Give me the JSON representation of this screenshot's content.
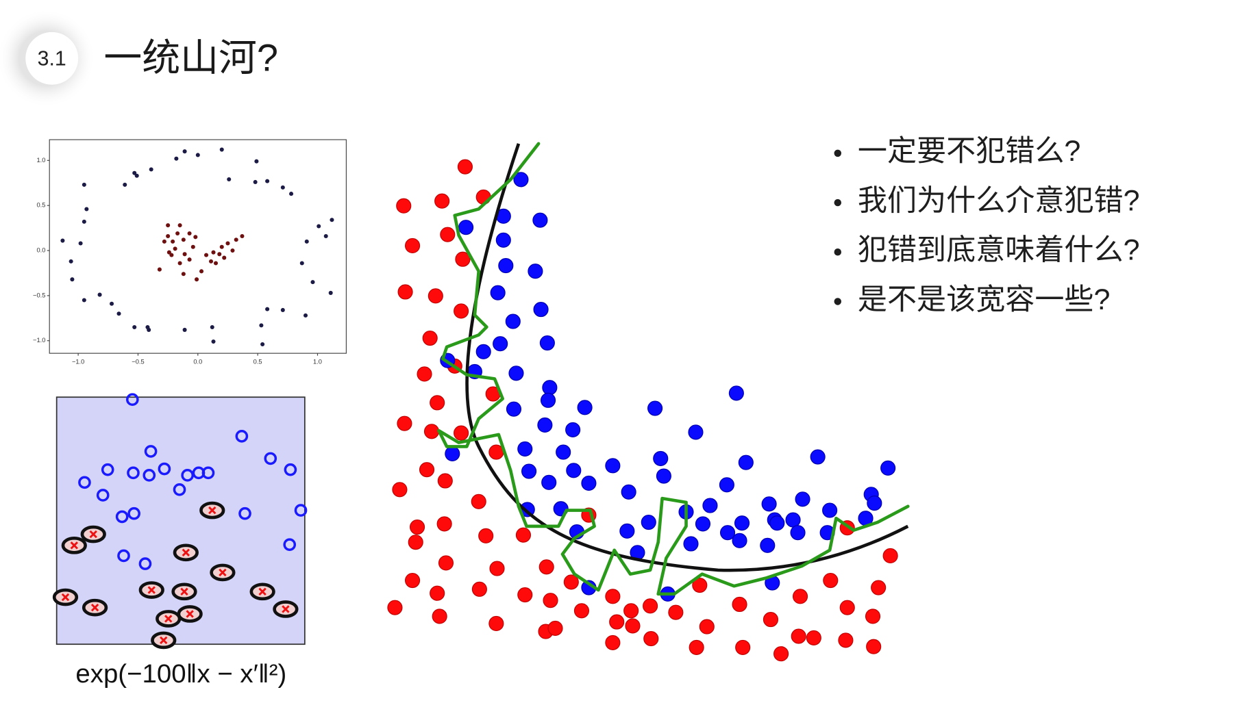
{
  "header": {
    "section": "3.1",
    "title": "一统山河?"
  },
  "bullets": [
    "一定要不犯错么?",
    "我们为什么介意犯错?",
    "犯错到底意味着什么?",
    "是不是该宽容一些?"
  ],
  "chart_data": {
    "type": "scatter",
    "xlim": [
      -1.24,
      1.24
    ],
    "ylim": [
      -1.14,
      1.23
    ],
    "xticks": [
      {
        "value": -1.0,
        "label": "−1.0"
      },
      {
        "value": -0.5,
        "label": "−0.5"
      },
      {
        "value": 0.0,
        "label": "0.0"
      },
      {
        "value": 0.5,
        "label": "0.5"
      },
      {
        "value": 1.0,
        "label": "1.0"
      }
    ],
    "yticks": [
      {
        "value": 1.0,
        "label": "1.0"
      },
      {
        "value": 0.5,
        "label": "0.5"
      },
      {
        "value": 0.0,
        "label": "0.0"
      },
      {
        "value": -0.5,
        "label": "−0.5"
      },
      {
        "value": -1.0,
        "label": "−1.0"
      }
    ],
    "series": [
      {
        "color": "#1b1b46",
        "x": [
          -0.11,
          0.0,
          0.2,
          -0.18,
          -0.39,
          -0.53,
          -0.51,
          -0.61,
          -0.95,
          0.49,
          0.58,
          0.48,
          0.71,
          0.78,
          0.26,
          -0.93,
          -0.95,
          -1.13,
          -0.98,
          1.12,
          1.01,
          1.07,
          0.91,
          -1.06,
          0.87,
          -1.05,
          0.96,
          -0.95,
          -0.82,
          -0.72,
          -0.66,
          1.11,
          0.9,
          0.58,
          0.71,
          -0.53,
          -0.42,
          -0.41,
          -0.11,
          0.12,
          0.13,
          0.53,
          0.54
        ],
        "y": [
          1.1,
          1.06,
          1.12,
          1.02,
          0.9,
          0.86,
          0.83,
          0.73,
          0.73,
          0.99,
          0.77,
          0.76,
          0.7,
          0.63,
          0.79,
          0.46,
          0.32,
          0.11,
          0.08,
          0.34,
          0.27,
          0.16,
          0.1,
          -0.12,
          -0.14,
          -0.32,
          -0.35,
          -0.55,
          -0.49,
          -0.59,
          -0.7,
          -0.47,
          -0.72,
          -0.65,
          -0.66,
          -0.85,
          -0.85,
          -0.88,
          -0.88,
          -0.85,
          -1.01,
          -0.83,
          -1.04
        ]
      },
      {
        "color": "#6e1010",
        "x": [
          -0.25,
          -0.25,
          -0.21,
          -0.28,
          -0.17,
          -0.12,
          -0.07,
          -0.02,
          -0.04,
          -0.11,
          -0.07,
          -0.15,
          -0.22,
          -0.19,
          -0.24,
          -0.32,
          -0.12,
          -0.01,
          0.03,
          0.11,
          0.15,
          0.18,
          0.22,
          0.2,
          0.25,
          0.32,
          0.37,
          0.29,
          0.13,
          0.07,
          -0.15
        ],
        "y": [
          0.28,
          0.16,
          0.1,
          0.1,
          0.19,
          0.12,
          0.19,
          0.15,
          0.04,
          -0.04,
          -0.1,
          -0.14,
          -0.05,
          0.02,
          -0.02,
          -0.21,
          -0.26,
          -0.32,
          -0.23,
          -0.12,
          -0.14,
          -0.04,
          -0.08,
          0.04,
          0.08,
          0.12,
          0.16,
          0.0,
          -0.02,
          -0.05,
          0.28
        ]
      }
    ]
  },
  "formula": "exp(−100‖x − x′‖²)"
}
